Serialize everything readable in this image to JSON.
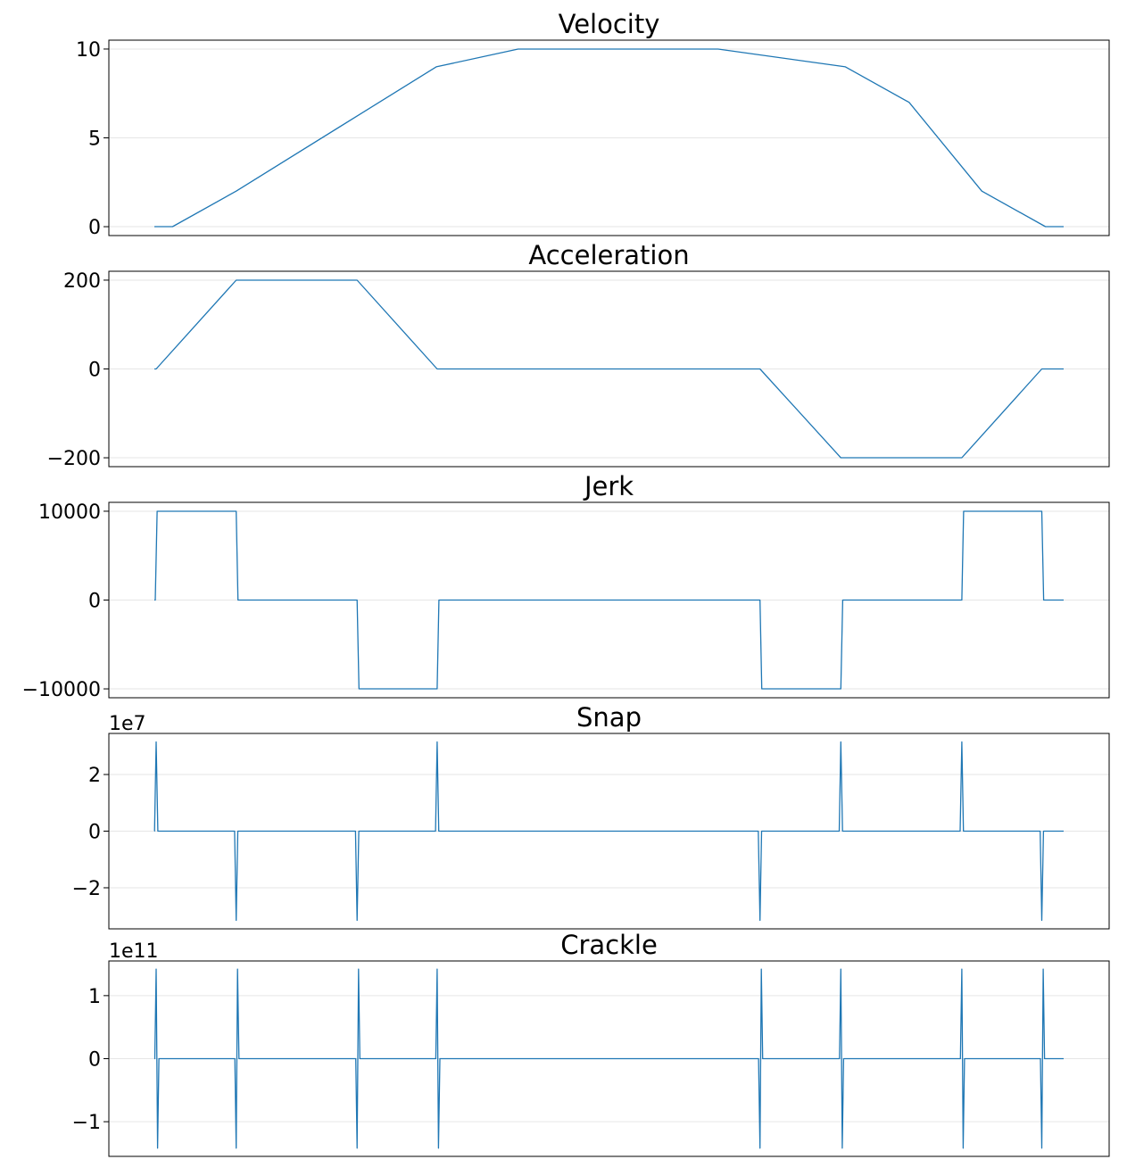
{
  "colors": {
    "series": "#1f77b4",
    "grid": "#e6e6e6",
    "axes": "#000000"
  },
  "chart_data": [
    {
      "type": "line",
      "title": "Velocity",
      "xlabel": "",
      "ylabel": "",
      "ylim": [
        -0.5,
        10.5
      ],
      "yticks": [
        0,
        5,
        10
      ],
      "ytick_labels": [
        "0",
        "5",
        "10"
      ],
      "offset_label": "",
      "grid": "horizontal",
      "x_ticks_visible": false,
      "series": [
        {
          "x": [
            0,
            0.02,
            0.09,
            0.31,
            0.4,
            0.62,
            0.76,
            0.83,
            0.91,
            0.98,
            1.0
          ],
          "values": [
            0,
            0,
            2.0,
            9.0,
            10,
            10,
            9.0,
            7.0,
            2.0,
            0,
            0
          ]
        }
      ]
    },
    {
      "type": "line",
      "title": "Acceleration",
      "xlabel": "",
      "ylabel": "",
      "ylim": [
        -220,
        220
      ],
      "yticks": [
        -200,
        0,
        200
      ],
      "ytick_labels": [
        "−200",
        "0",
        "200"
      ],
      "offset_label": "",
      "grid": "horizontal",
      "x_ticks_visible": false,
      "series": [
        {
          "x": [
            0,
            0.002,
            0.09,
            0.223,
            0.311,
            0.666,
            0.755,
            0.888,
            0.976,
            1.0
          ],
          "values": [
            0,
            0,
            200,
            200,
            0,
            0,
            -200,
            -200,
            0,
            0
          ]
        }
      ]
    },
    {
      "type": "line",
      "title": "Jerk",
      "xlabel": "",
      "ylabel": "",
      "ylim": [
        -11000,
        11000
      ],
      "yticks": [
        -10000,
        0,
        10000
      ],
      "ytick_labels": [
        "−10000",
        "0",
        "10000"
      ],
      "offset_label": "",
      "grid": "horizontal",
      "x_ticks_visible": false,
      "series": [
        {
          "x": [
            0,
            0.001,
            0.003,
            0.09,
            0.092,
            0.223,
            0.225,
            0.311,
            0.313,
            0.666,
            0.668,
            0.755,
            0.757,
            0.888,
            0.89,
            0.976,
            0.978,
            1.0
          ],
          "values": [
            0,
            0,
            10000,
            10000,
            0,
            0,
            -10000,
            -10000,
            0,
            0,
            -10000,
            -10000,
            0,
            0,
            10000,
            10000,
            0,
            0
          ]
        }
      ]
    },
    {
      "type": "line",
      "title": "Snap",
      "xlabel": "",
      "ylabel": "",
      "ylim": [
        -3.45,
        3.45
      ],
      "yticks": [
        -2,
        0,
        2
      ],
      "ytick_labels": [
        "−2",
        "0",
        "2"
      ],
      "offset_label": "1e7",
      "grid": "horizontal",
      "x_ticks_visible": false,
      "spikes": [
        {
          "x": 0.002,
          "value": 3.15
        },
        {
          "x": 0.09,
          "value": -3.15
        },
        {
          "x": 0.223,
          "value": -3.15
        },
        {
          "x": 0.311,
          "value": 3.15
        },
        {
          "x": 0.666,
          "value": -3.15
        },
        {
          "x": 0.755,
          "value": 3.15
        },
        {
          "x": 0.888,
          "value": 3.15
        },
        {
          "x": 0.976,
          "value": -3.15
        }
      ]
    },
    {
      "type": "line",
      "title": "Crackle",
      "xlabel": "",
      "ylabel": "",
      "ylim": [
        -1.55,
        1.55
      ],
      "yticks": [
        -1,
        0,
        1
      ],
      "ytick_labels": [
        "−1",
        "0",
        "1"
      ],
      "offset_label": "1e11",
      "grid": "horizontal",
      "x_ticks_visible": false,
      "doublets": [
        {
          "x": 0.002,
          "first": 1.42
        },
        {
          "x": 0.09,
          "first": -1.42
        },
        {
          "x": 0.223,
          "first": -1.42
        },
        {
          "x": 0.311,
          "first": 1.42
        },
        {
          "x": 0.666,
          "first": -1.42
        },
        {
          "x": 0.755,
          "first": 1.42
        },
        {
          "x": 0.888,
          "first": 1.42
        },
        {
          "x": 0.976,
          "first": -1.42
        }
      ]
    }
  ]
}
